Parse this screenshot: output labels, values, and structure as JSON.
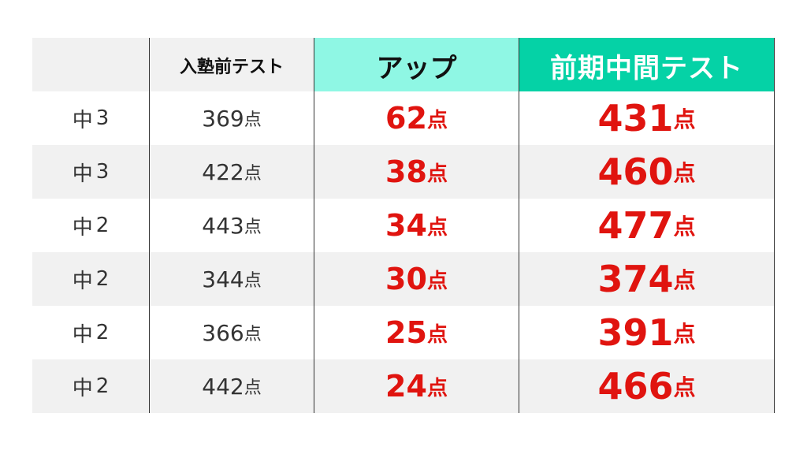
{
  "headers": {
    "grade": "",
    "before": "入塾前テスト",
    "up": "アップ",
    "midterm": "前期中間テスト"
  },
  "unit": "点",
  "colors": {
    "up_header_bg": "#8ff7e4",
    "midterm_header_bg": "#05d2a6",
    "highlight_text": "#e0140f",
    "stripe_gray": "#f1f1f1"
  },
  "rows": [
    {
      "grade": "中",
      "grade_num": "3",
      "before": "369",
      "up": "62",
      "midterm": "431"
    },
    {
      "grade": "中",
      "grade_num": "3",
      "before": "422",
      "up": "38",
      "midterm": "460"
    },
    {
      "grade": "中",
      "grade_num": "2",
      "before": "443",
      "up": "34",
      "midterm": "477"
    },
    {
      "grade": "中",
      "grade_num": "2",
      "before": "344",
      "up": "30",
      "midterm": "374"
    },
    {
      "grade": "中",
      "grade_num": "2",
      "before": "366",
      "up": "25",
      "midterm": "391"
    },
    {
      "grade": "中",
      "grade_num": "2",
      "before": "442",
      "up": "24",
      "midterm": "466"
    }
  ]
}
